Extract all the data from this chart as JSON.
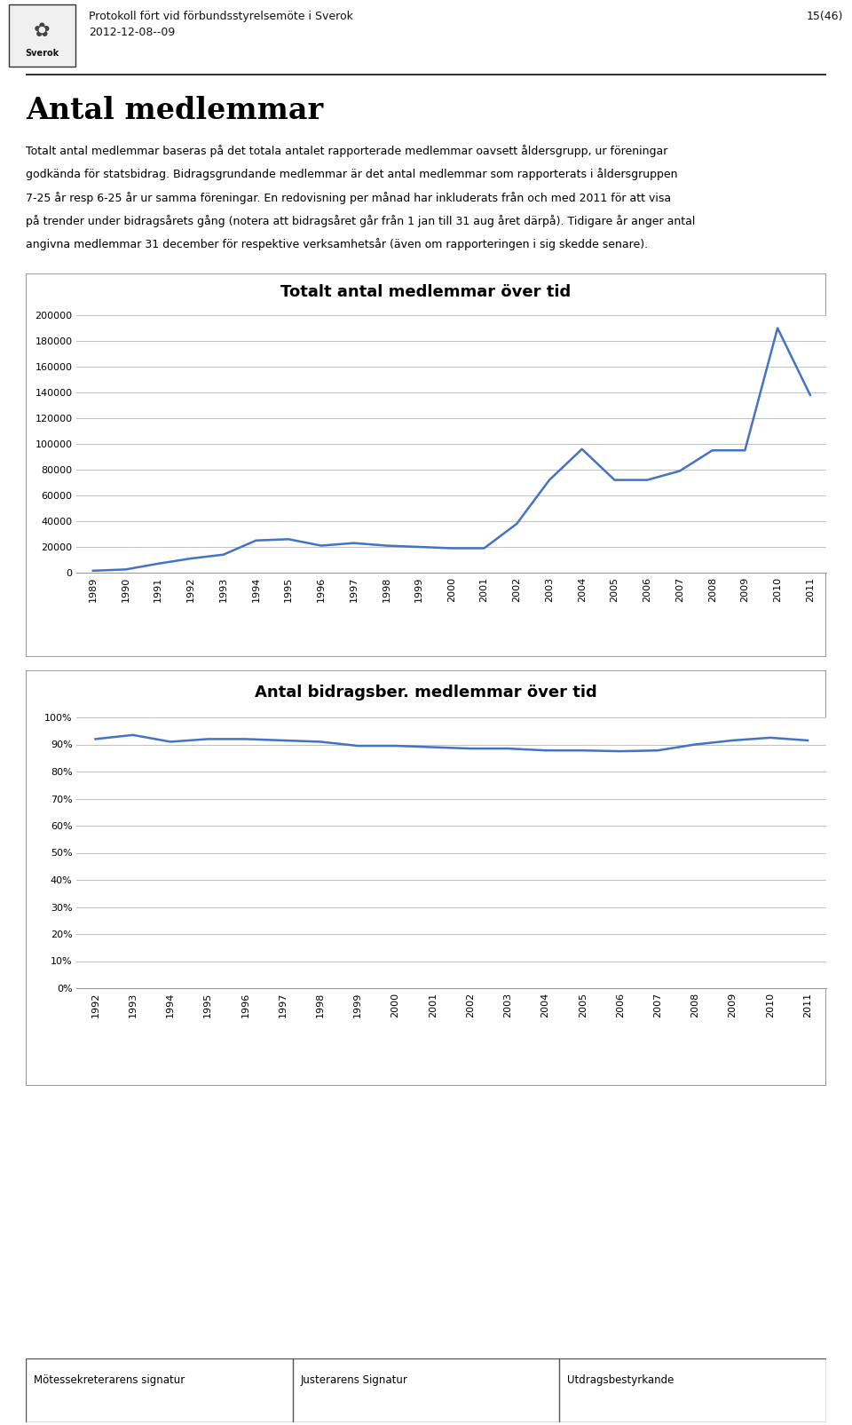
{
  "header_text": "Protokoll fört vid förbundsstyrelsemöte i Sverok",
  "header_date": "2012-12-08--09",
  "header_page": "15(46)",
  "main_title": "Antal medlemmar",
  "body_text_lines": [
    "Totalt antal medlemmar baseras på det totala antalet rapporterade medlemmar oavsett åldersgrupp, ur föreningar",
    "godkända för statsbidrag. Bidragsgrundande medlemmar är det antal medlemmar som rapporterats i åldersgruppen",
    "7-25 år resp 6-25 år ur samma föreningar. En redovisning per månad har inkluderats från och med 2011 för att visa",
    "på trender under bidragsårets gång (notera att bidragsåret går från 1 jan till 31 aug året därpå). Tidigare år anger antal",
    "angivna medlemmar 31 december för respektive verksamhetsår (även om rapporteringen i sig skedde senare)."
  ],
  "chart1_title": "Totalt antal medlemmar över tid",
  "chart1_years": [
    1989,
    1990,
    1991,
    1992,
    1993,
    1994,
    1995,
    1996,
    1997,
    1998,
    1999,
    2000,
    2001,
    2002,
    2003,
    2004,
    2005,
    2006,
    2007,
    2008,
    2009,
    2010,
    2011
  ],
  "chart1_values": [
    1500,
    2500,
    7000,
    11000,
    14000,
    25000,
    26000,
    21000,
    23000,
    21000,
    20000,
    19000,
    19000,
    38000,
    72000,
    96000,
    72000,
    72000,
    79000,
    95000,
    95000,
    190000,
    138000
  ],
  "chart1_ylim": [
    0,
    200000
  ],
  "chart1_yticks": [
    0,
    20000,
    40000,
    60000,
    80000,
    100000,
    120000,
    140000,
    160000,
    180000,
    200000
  ],
  "chart1_line_color": "#4472C4",
  "chart2_title": "Antal bidragsber. medlemmar över tid",
  "chart2_years": [
    1992,
    1993,
    1994,
    1995,
    1996,
    1997,
    1998,
    1999,
    2000,
    2001,
    2002,
    2003,
    2004,
    2005,
    2006,
    2007,
    2008,
    2009,
    2010,
    2011
  ],
  "chart2_values": [
    0.92,
    0.935,
    0.91,
    0.92,
    0.92,
    0.915,
    0.91,
    0.895,
    0.895,
    0.89,
    0.885,
    0.885,
    0.878,
    0.878,
    0.875,
    0.878,
    0.9,
    0.915,
    0.925,
    0.915
  ],
  "chart2_ylim": [
    0,
    1.0
  ],
  "chart2_yticks": [
    0.0,
    0.1,
    0.2,
    0.3,
    0.4,
    0.5,
    0.6,
    0.7,
    0.8,
    0.9,
    1.0
  ],
  "chart2_line_color": "#4472C4",
  "footer_col1": "Mötessekreterarens signatur",
  "footer_col2": "Justerarens Signatur",
  "footer_col3": "Utdragsbestyrkande",
  "bg_color": "#ffffff",
  "text_color": "#000000",
  "grid_color": "#c0c0c0",
  "chart_bg": "#ffffff",
  "chart_border_color": "#888888"
}
